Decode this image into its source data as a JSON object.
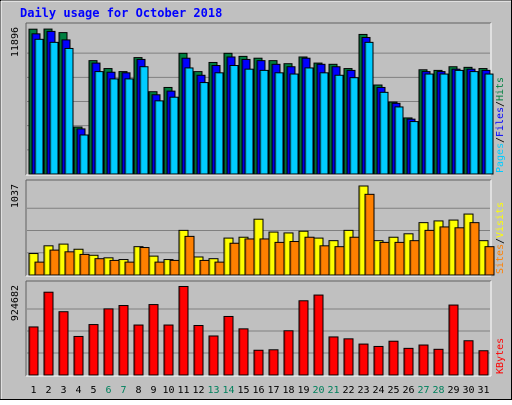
{
  "chart_data": {
    "type": "bar",
    "title": "Daily usage for October 2018",
    "categories": [
      "1",
      "2",
      "3",
      "4",
      "5",
      "6",
      "7",
      "8",
      "9",
      "10",
      "11",
      "12",
      "13",
      "14",
      "15",
      "16",
      "17",
      "18",
      "19",
      "20",
      "21",
      "22",
      "23",
      "24",
      "25",
      "26",
      "27",
      "28",
      "29",
      "30",
      "31"
    ],
    "weekend_days": [
      "6",
      "7",
      "13",
      "14",
      "20",
      "21",
      "27",
      "28"
    ],
    "panels": [
      {
        "name": "hits-files-pages",
        "max_label": "11896",
        "ylim": [
          0,
          11896
        ],
        "side_label": [
          {
            "text": "Pages",
            "color": "#00ccff"
          },
          {
            "text": "Files",
            "color": "#0000ff"
          },
          {
            "text": "Hits",
            "color": "#008040"
          }
        ],
        "series": [
          {
            "name": "Hits",
            "color": "#008040",
            "values": [
              11880,
              11890,
              11600,
              3850,
              9300,
              8650,
              8400,
              9550,
              6750,
              7100,
              9900,
              8400,
              9150,
              9900,
              9650,
              9500,
              9300,
              9050,
              9600,
              9100,
              9000,
              8650,
              11450,
              7300,
              5900,
              4600,
              8550,
              8500,
              8800,
              8750,
              8650
            ]
          },
          {
            "name": "Files",
            "color": "#0000ff",
            "values": [
              11500,
              11700,
              11000,
              3700,
              9100,
              8350,
              8300,
              9400,
              6500,
              6800,
              9500,
              8100,
              8900,
              9600,
              9400,
              9300,
              9000,
              8800,
              9500,
              9000,
              8800,
              8500,
              11200,
              7100,
              5800,
              4500,
              8400,
              8400,
              8600,
              8600,
              8500
            ]
          },
          {
            "name": "Pages",
            "color": "#00ccff",
            "values": [
              11050,
              10800,
              10300,
              3200,
              8400,
              7800,
              7800,
              8800,
              6000,
              6300,
              8700,
              7500,
              8300,
              8900,
              8600,
              8500,
              8300,
              8200,
              8700,
              8300,
              8100,
              7900,
              10800,
              6700,
              5500,
              4300,
              8200,
              8200,
              8500,
              8400,
              8200
            ]
          }
        ]
      },
      {
        "name": "visits-sites",
        "max_label": "1037",
        "ylim": [
          0,
          1037
        ],
        "side_label": [
          {
            "text": "Sites",
            "color": "#ff8000"
          },
          {
            "text": "Visits",
            "color": "#ffff00"
          }
        ],
        "series": [
          {
            "name": "Visits",
            "color": "#ffff00",
            "values": [
              250,
              340,
              360,
              300,
              230,
              200,
              180,
              330,
              220,
              180,
              520,
              210,
              190,
              430,
              440,
              650,
              500,
              490,
              510,
              430,
              400,
              520,
              1037,
              400,
              440,
              480,
              610,
              630,
              640,
              710,
              400
            ]
          },
          {
            "name": "Sites",
            "color": "#ff8000",
            "values": [
              150,
              290,
              270,
              240,
              190,
              170,
              150,
              320,
              150,
              170,
              450,
              170,
              150,
              370,
              420,
              420,
              380,
              390,
              440,
              340,
              330,
              440,
              940,
              380,
              380,
              400,
              520,
              560,
              550,
              610,
              330
            ]
          }
        ]
      },
      {
        "name": "kbytes",
        "max_label": "924682",
        "ylim": [
          0,
          924682
        ],
        "side_label": [
          {
            "text": "KBytes",
            "color": "#ff0000"
          }
        ],
        "series": [
          {
            "name": "KBytes",
            "color": "#ff0000",
            "values": [
              505000,
              870000,
              665000,
              405000,
              530000,
              695000,
              730000,
              525000,
              740000,
              525000,
              930000,
              520000,
              410000,
              615000,
              485000,
              260000,
              265000,
              465000,
              780000,
              840000,
              400000,
              380000,
              325000,
              300000,
              355000,
              280000,
              315000,
              270000,
              735000,
              360000,
              255000
            ]
          }
        ]
      }
    ]
  }
}
